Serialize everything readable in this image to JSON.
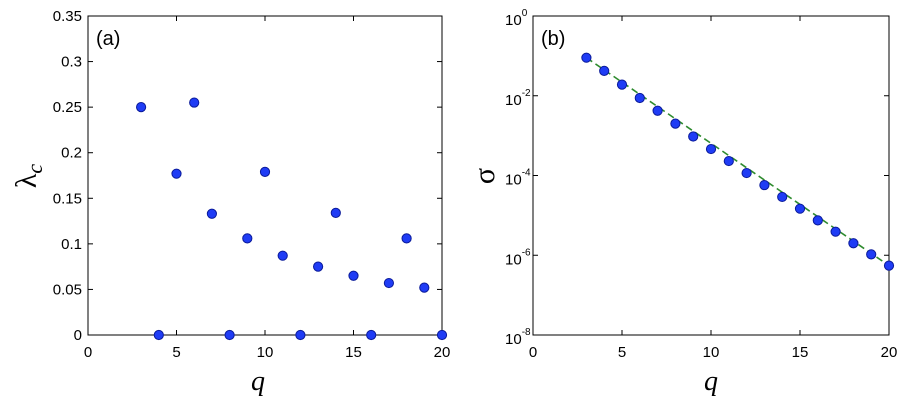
{
  "colors": {
    "marker": "#1f3cf5",
    "marker_edge": "#0a1a9a",
    "fit_line": "#2e8b2e"
  },
  "chart_data": [
    {
      "type": "scatter",
      "panel_label": "(a)",
      "xlabel": "q",
      "ylabel": "λ",
      "ylabel_sub": "c",
      "xlim": [
        0,
        20
      ],
      "ylim": [
        0,
        0.35
      ],
      "xticks": [
        "0",
        "5",
        "10",
        "15",
        "20"
      ],
      "yticks": [
        "0",
        "0.05",
        "0.1",
        "0.15",
        "0.2",
        "0.25",
        "0.3",
        "0.35"
      ],
      "grid": false,
      "series": [
        {
          "x": [
            3,
            4,
            5,
            6,
            7,
            8,
            9,
            10,
            11,
            12,
            13,
            14,
            15,
            16,
            17,
            18,
            19,
            20
          ],
          "y": [
            0.25,
            0,
            0.177,
            0.255,
            0.133,
            0,
            0.106,
            0.179,
            0.087,
            0,
            0.075,
            0.134,
            0.065,
            0,
            0.057,
            0.106,
            0.052,
            0
          ]
        }
      ]
    },
    {
      "type": "scatter",
      "panel_label": "(b)",
      "xlabel": "q",
      "ylabel": "σ",
      "xlim": [
        0,
        20
      ],
      "ylim": [
        1e-08,
        1
      ],
      "yscale": "log",
      "xticks": [
        "0",
        "5",
        "10",
        "15",
        "20"
      ],
      "yticks": [
        {
          "base": "10",
          "exp": "-8"
        },
        {
          "base": "10",
          "exp": "-6"
        },
        {
          "base": "10",
          "exp": "-4"
        },
        {
          "base": "10",
          "exp": "-2"
        },
        {
          "base": "10",
          "exp": "0"
        }
      ],
      "grid": false,
      "series": [
        {
          "x": [
            3,
            4,
            5,
            6,
            7,
            8,
            9,
            10,
            11,
            12,
            13,
            14,
            15,
            16,
            17,
            18,
            19,
            20
          ],
          "y": [
            0.09,
            0.042,
            0.019,
            0.0088,
            0.0042,
            0.002,
            0.00095,
            0.00046,
            0.00023,
            0.000115,
            5.75e-05,
            2.9e-05,
            1.47e-05,
            7.5e-06,
            3.9e-06,
            2e-06,
            1.05e-06,
            5.5e-07
          ]
        }
      ],
      "fit_line": {
        "style": "dashed",
        "x": [
          3,
          20
        ],
        "y": [
          0.09,
          5.5e-07
        ]
      }
    }
  ]
}
